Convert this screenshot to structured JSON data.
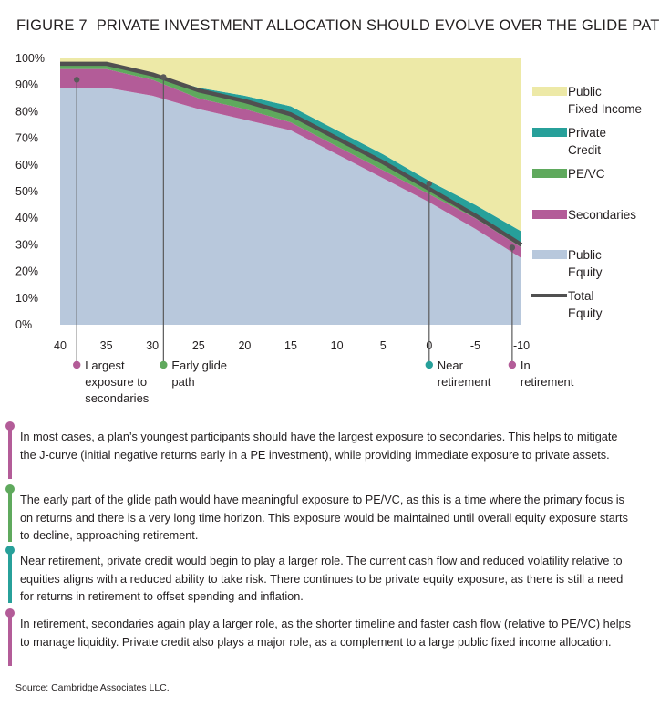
{
  "figure": {
    "label": "FIGURE 7",
    "title": "PRIVATE INVESTMENT ALLOCATION SHOULD EVOLVE OVER THE GLIDE PATH"
  },
  "chart_data": {
    "type": "area",
    "x": [
      40,
      35,
      30,
      25,
      20,
      15,
      10,
      5,
      0,
      -5,
      -10
    ],
    "xlim": [
      40,
      -10
    ],
    "ylim": [
      0,
      100
    ],
    "x_tick_labels": [
      "40",
      "35",
      "30",
      "25",
      "20",
      "15",
      "10",
      "5",
      "0",
      "-5",
      "-10"
    ],
    "y_tick_labels": [
      "100%",
      "90%",
      "80%",
      "70%",
      "60%",
      "50%",
      "40%",
      "30%",
      "20%",
      "10%",
      "0%"
    ],
    "series": [
      {
        "name": "Public Equity",
        "color": "#b8c8dc",
        "values": [
          89,
          89,
          86,
          81,
          77,
          73,
          64,
          55,
          46,
          36,
          25
        ]
      },
      {
        "name": "Secondaries",
        "color": "#b35c98",
        "values": [
          7,
          7,
          6,
          4,
          4,
          3,
          3,
          3,
          3,
          4,
          4
        ]
      },
      {
        "name": "PE/VC",
        "color": "#5fa95d",
        "values": [
          2,
          2,
          2,
          3,
          3,
          3,
          3,
          3,
          2,
          1,
          1
        ]
      },
      {
        "name": "Private Credit",
        "color": "#27a09a",
        "values": [
          0,
          0,
          0,
          1,
          2,
          3,
          3,
          3,
          3,
          4,
          5
        ]
      },
      {
        "name": "Public Fixed Income",
        "color": "#ede9a7",
        "values": [
          2,
          2,
          6,
          11,
          14,
          18,
          27,
          36,
          46,
          55,
          65
        ]
      }
    ],
    "total_equity": {
      "name": "Total Equity",
      "color": "#505050",
      "values": [
        98,
        98,
        94,
        88,
        84,
        79,
        70,
        61,
        51,
        41,
        30
      ]
    },
    "legend": [
      {
        "name": "Public Fixed Income",
        "lines": [
          "Public",
          "Fixed Income"
        ],
        "color": "#ede9a7",
        "kind": "area"
      },
      {
        "name": "Private Credit",
        "lines": [
          "Private",
          "Credit"
        ],
        "color": "#27a09a",
        "kind": "area"
      },
      {
        "name": "PE/VC",
        "lines": [
          "PE/VC"
        ],
        "color": "#5fa95d",
        "kind": "area"
      },
      {
        "name": "Secondaries",
        "lines": [
          "Secondaries"
        ],
        "color": "#b35c98",
        "kind": "area"
      },
      {
        "name": "Public Equity",
        "lines": [
          "Public",
          "Equity"
        ],
        "color": "#b8c8dc",
        "kind": "area"
      },
      {
        "name": "Total Equity",
        "lines": [
          "Total",
          "Equity"
        ],
        "color": "#505050",
        "kind": "line"
      }
    ],
    "annotations": [
      {
        "x": 38.2,
        "y": 92,
        "color": "#b35c98",
        "lines": [
          "Largest",
          "exposure to",
          "secondaries"
        ]
      },
      {
        "x": 28.8,
        "y": 93,
        "color": "#5fa95d",
        "lines": [
          "Early glide",
          "path"
        ]
      },
      {
        "x": 0,
        "y": 53,
        "color": "#27a09a",
        "lines": [
          "Near",
          "retirement"
        ]
      },
      {
        "x": -9,
        "y": 29,
        "color": "#b35c98",
        "lines": [
          "In",
          "retirement"
        ]
      }
    ]
  },
  "notes": [
    {
      "color": "#b35c98",
      "text": "In most cases, a plan’s youngest participants should have the largest exposure to secondaries. This helps to mitigate the J-curve (initial negative returns early in a PE investment), while providing immediate exposure to private assets."
    },
    {
      "color": "#5fa95d",
      "text": "The early part of the glide path would have meaningful exposure to PE/VC, as this is a time where the primary focus is on returns and there is a very long time horizon. This exposure would be maintained until overall equity exposure starts to decline, approaching retirement."
    },
    {
      "color": "#27a09a",
      "text": "Near retirement, private credit would begin to play a larger role. The current cash flow and reduced volatility relative to equities aligns with a reduced ability to take risk. There continues to be private equity exposure, as there is still a need for returns in retirement to offset spending and inflation."
    },
    {
      "color": "#b35c98",
      "text": "In retirement, secondaries again play a larger role, as the shorter timeline and faster cash flow (relative to PE/VC) helps to manage liquidity. Private credit also plays a major role, as a complement to a large public fixed income allocation."
    }
  ],
  "source": "Source: Cambridge Associates LLC."
}
